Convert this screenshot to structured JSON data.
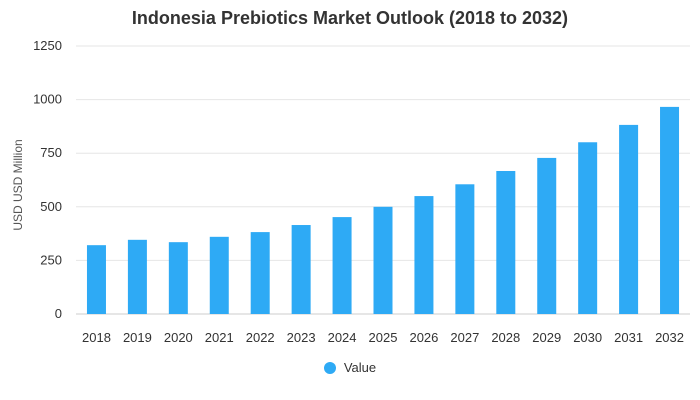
{
  "chart_data": {
    "type": "bar",
    "title": "Indonesia Prebiotics Market Outlook (2018 to 2032)",
    "xlabel": "",
    "ylabel": "USD USD Million",
    "ylim": [
      0,
      1250
    ],
    "yticks": [
      0,
      250,
      500,
      750,
      1000,
      1250
    ],
    "grid": true,
    "legend_position": "bottom",
    "categories": [
      "2018",
      "2019",
      "2020",
      "2021",
      "2022",
      "2023",
      "2024",
      "2025",
      "2026",
      "2027",
      "2028",
      "2029",
      "2030",
      "2031",
      "2032"
    ],
    "series": [
      {
        "name": "Value",
        "color": "#2eaaf5",
        "values": [
          321,
          346,
          335,
          360,
          382,
          415,
          452,
          500,
          550,
          605,
          667,
          728,
          801,
          882,
          966
        ]
      }
    ]
  }
}
